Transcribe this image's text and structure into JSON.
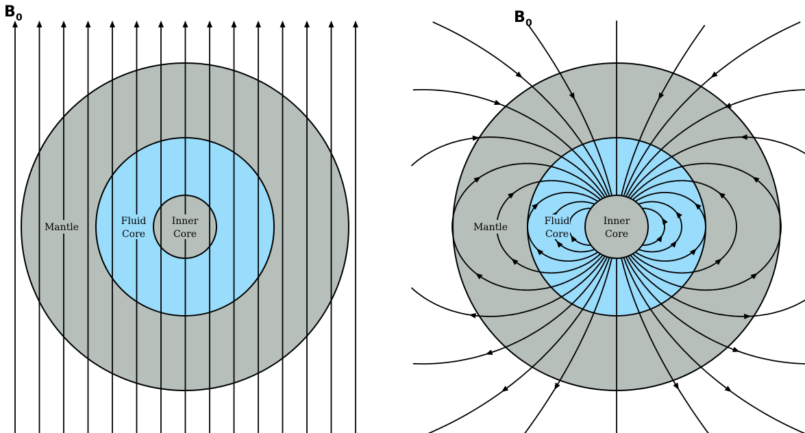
{
  "colors": {
    "mantle": "#b6bfb9",
    "fluid_core": "#9adcfb",
    "inner_core": "#b6bfb9",
    "field_line": "#000000"
  },
  "left_panel": {
    "field_label": "B",
    "field_label_sub": "0",
    "mantle_label": "Mantle",
    "fluid_label_line1": "Fluid",
    "fluid_label_line2": "Core",
    "inner_label_line1": "Inner",
    "inner_label_line2": "Core"
  },
  "right_panel": {
    "field_label": "B",
    "field_label_sub": "0",
    "mantle_label": "Mantle",
    "fluid_label_line1": "Fluid",
    "fluid_label_line2": "Core",
    "inner_label_line1": "Inner",
    "inner_label_line2": "Core"
  }
}
